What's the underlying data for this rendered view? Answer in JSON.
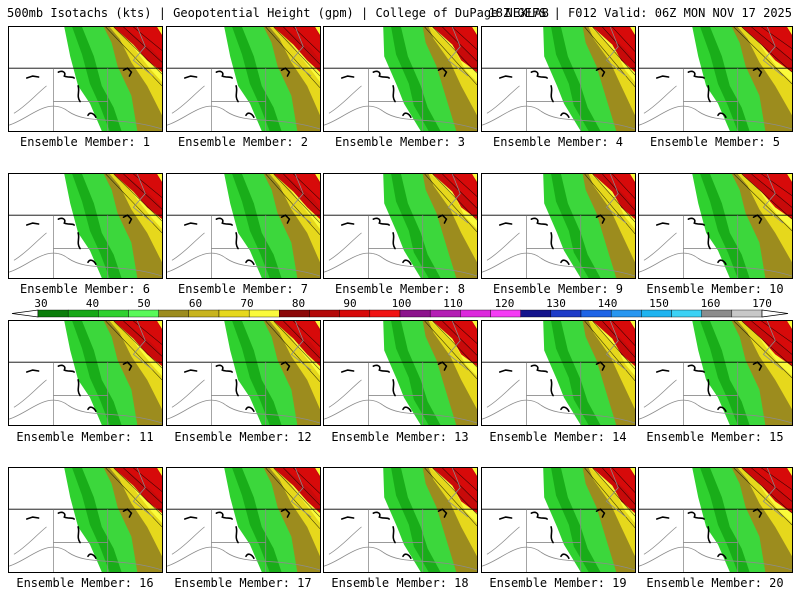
{
  "header": {
    "title": "500mb Isotachs (kts) | Geopotential Height (gpm) | College of DuPage NEXLAB",
    "run_info": "18Z GEFS | F012 Valid: 06Z MON NOV 17 2025"
  },
  "panels": [
    {
      "label": "Ensemble Member: 1"
    },
    {
      "label": "Ensemble Member: 2"
    },
    {
      "label": "Ensemble Member: 3"
    },
    {
      "label": "Ensemble Member: 4"
    },
    {
      "label": "Ensemble Member: 5"
    },
    {
      "label": "Ensemble Member: 6"
    },
    {
      "label": "Ensemble Member: 7"
    },
    {
      "label": "Ensemble Member: 8"
    },
    {
      "label": "Ensemble Member: 9"
    },
    {
      "label": "Ensemble Member: 10"
    },
    {
      "label": "Ensemble Member: 11"
    },
    {
      "label": "Ensemble Member: 12"
    },
    {
      "label": "Ensemble Member: 13"
    },
    {
      "label": "Ensemble Member: 14"
    },
    {
      "label": "Ensemble Member: 15"
    },
    {
      "label": "Ensemble Member: 16"
    },
    {
      "label": "Ensemble Member: 17"
    },
    {
      "label": "Ensemble Member: 18"
    },
    {
      "label": "Ensemble Member: 19"
    },
    {
      "label": "Ensemble Member: 20"
    }
  ],
  "colorbar": {
    "labels": [
      "30",
      "40",
      "50",
      "60",
      "70",
      "80",
      "90",
      "100",
      "110",
      "120",
      "130",
      "140",
      "150",
      "160",
      "170"
    ],
    "colors": [
      "#0b7d0b",
      "#17a817",
      "#2fd12f",
      "#59f959",
      "#9c8c1e",
      "#c8b41e",
      "#e6d81c",
      "#fafa3c",
      "#8c0a0a",
      "#b40a0a",
      "#d70a0a",
      "#f01414",
      "#8c148c",
      "#b41eb4",
      "#dc28dc",
      "#f53cf5",
      "#14148c",
      "#1e3cc8",
      "#1e64e6",
      "#2896f0",
      "#1eb4f0",
      "#3cd2f5",
      "#8c8c8c",
      "#c8c8c8"
    ]
  }
}
